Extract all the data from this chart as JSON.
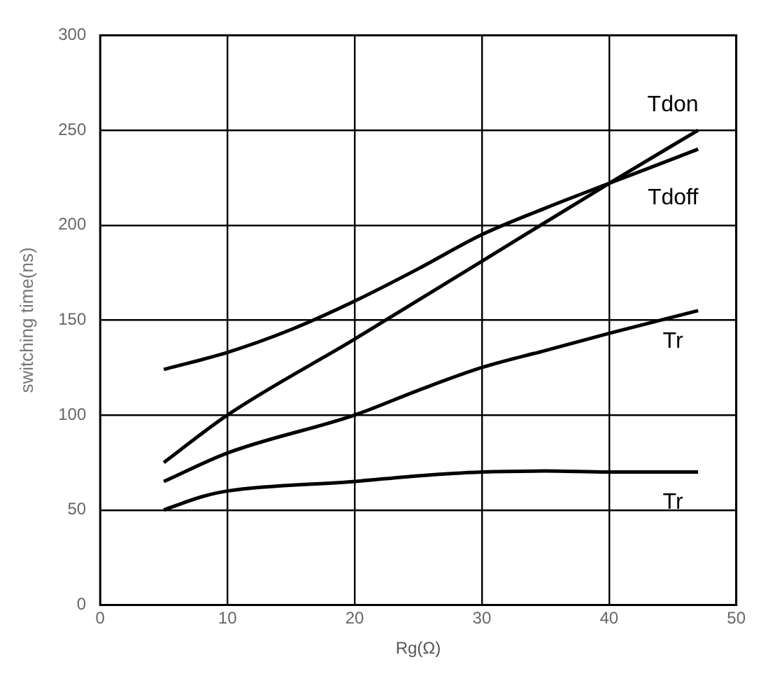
{
  "chart_data": {
    "type": "line",
    "xlabel": "Rg(Ω)",
    "ylabel": "switching time(ns)",
    "xlim": [
      0,
      50
    ],
    "xticks": [
      0,
      10,
      20,
      30,
      40,
      50
    ],
    "ylim": [
      0,
      300
    ],
    "yticks": [
      0,
      50,
      100,
      150,
      200,
      250,
      300
    ],
    "grid": true,
    "legend": false,
    "marker": "none",
    "line_style": "solid",
    "series": [
      {
        "name": "Tdon",
        "color": "#000000",
        "x": [
          5,
          10,
          20,
          30,
          40,
          47
        ],
        "values": [
          75,
          100,
          140,
          181,
          222,
          250
        ]
      },
      {
        "name": "Tdoff",
        "color": "#000000",
        "x": [
          5,
          10,
          15,
          20,
          25,
          30,
          35,
          40,
          47
        ],
        "values": [
          124,
          133,
          145,
          160,
          177,
          195,
          209,
          222,
          240
        ]
      },
      {
        "name": "Tr",
        "color": "#000000",
        "x": [
          5,
          10,
          20,
          25,
          30,
          35,
          40,
          47
        ],
        "values": [
          65,
          80,
          100,
          113,
          125,
          134,
          143,
          155
        ]
      },
      {
        "name": "Tr",
        "color": "#000000",
        "x": [
          5,
          8,
          10,
          20,
          25,
          30,
          35,
          40,
          47
        ],
        "values": [
          50,
          57,
          60,
          65,
          68,
          70,
          70.5,
          70,
          70
        ]
      }
    ]
  }
}
